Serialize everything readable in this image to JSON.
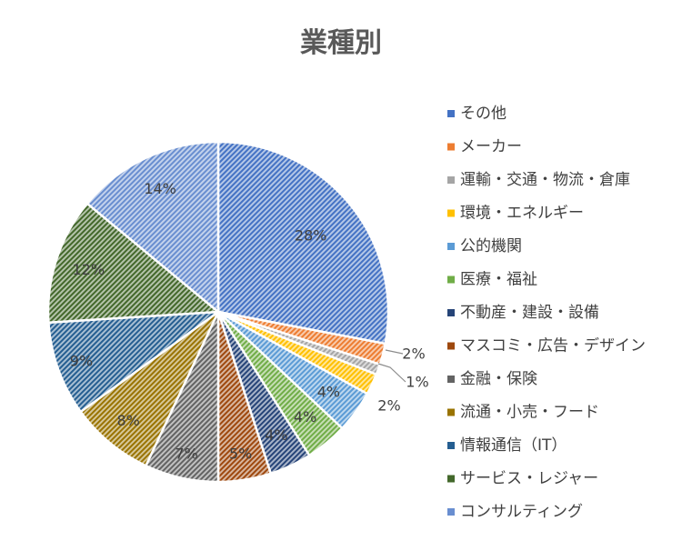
{
  "chart_data": {
    "type": "pie",
    "title": "業種別",
    "legend_position": "right",
    "categories": [
      "その他",
      "メーカー",
      "運輸・交通・物流・倉庫",
      "環境・エネルギー",
      "公的機関",
      "医療・福祉",
      "不動産・建設・設備",
      "マスコミ・広告・デザイン",
      "金融・保険",
      "流通・小売・フード",
      "情報通信（IT）",
      "サービス・レジャー",
      "コンサルティング"
    ],
    "values": [
      28,
      2,
      1,
      2,
      4,
      4,
      4,
      5,
      7,
      8,
      9,
      12,
      14
    ],
    "data_labels": [
      "28%",
      "2%",
      "1%",
      "2%",
      "4%",
      "4%",
      "4%",
      "5%",
      "7%",
      "8%",
      "9%",
      "12%",
      "14%"
    ],
    "colors": [
      "#4472C4",
      "#ED7D31",
      "#A5A5A5",
      "#FFC000",
      "#5B9BD5",
      "#70AD47",
      "#264478",
      "#9E480E",
      "#636363",
      "#997300",
      "#255E91",
      "#43682B",
      "#698ED0"
    ]
  }
}
